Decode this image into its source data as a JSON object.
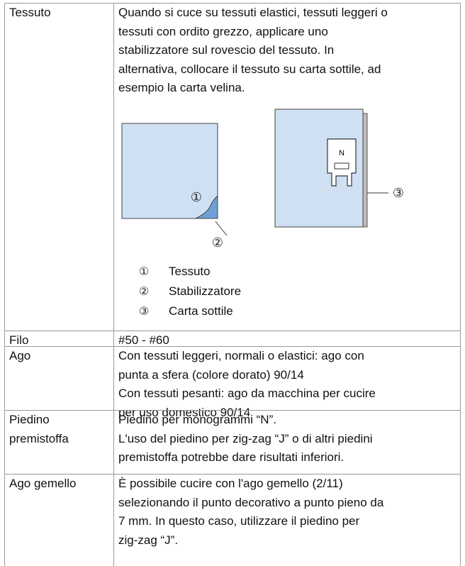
{
  "table": {
    "rows": [
      {
        "label": [
          "Tessuto"
        ],
        "lines": [
          "Quando si cuce su tessuti elastici, tessuti leggeri o",
          "tessuti con ordito grezzo, applicare uno",
          "stabilizzatore sul rovescio del tessuto. In",
          "alternativa, collocare il tessuto su carta sottile, ad",
          "esempio la carta velina."
        ],
        "figure": {
          "presser_foot_letter": "N",
          "callouts": [
            "①",
            "②",
            "③"
          ],
          "legend": [
            {
              "marker": "①",
              "text": "Tessuto"
            },
            {
              "marker": "②",
              "text": "Stabilizzatore"
            },
            {
              "marker": "③",
              "text": "Carta sottile"
            }
          ]
        }
      },
      {
        "label": [
          "Filo"
        ],
        "lines": [
          "#50 - #60"
        ]
      },
      {
        "label": [
          "Ago"
        ],
        "lines": [
          "Con tessuti leggeri, normali o elastici: ago con",
          "punta a sfera (colore dorato) 90/14",
          "Con tessuti pesanti: ago da macchina per cucire",
          "per uso domestico 90/14"
        ]
      },
      {
        "label": [
          "Piedino",
          "premistoffa"
        ],
        "lines": [
          "Piedino per monogrammi “N”.",
          "L'uso del piedino per zig-zag “J” o di altri piedini",
          "premistoffa potrebbe dare risultati inferiori."
        ]
      },
      {
        "label": [
          "Ago gemello"
        ],
        "lines": [
          "È possibile cucire con l'ago gemello (2/11)",
          "selezionando il punto decorativo a punto pieno da",
          "7 mm. In questo caso, utilizzare il piedino per",
          "zig-zag “J”."
        ]
      }
    ]
  }
}
